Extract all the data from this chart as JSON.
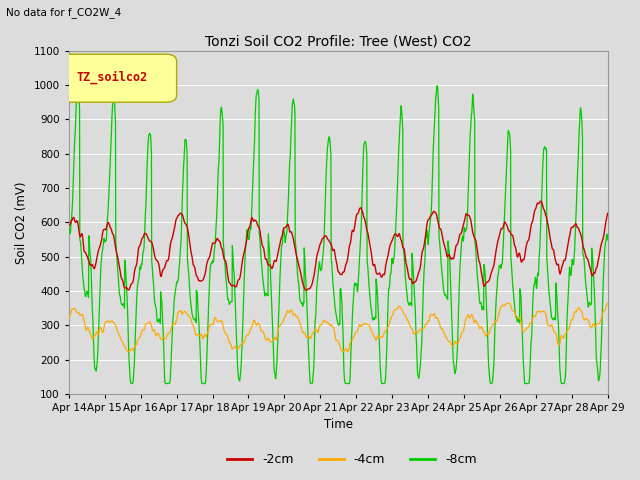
{
  "title": "Tonzi Soil CO2 Profile: Tree (West) CO2",
  "subtitle": "No data for f_CO2W_4",
  "ylabel": "Soil CO2 (mV)",
  "xlabel": "Time",
  "legend_label": "TZ_soilco2",
  "series_labels": [
    "-2cm",
    "-4cm",
    "-8cm"
  ],
  "series_colors": [
    "#cc0000",
    "#ffaa00",
    "#00cc00"
  ],
  "ylim": [
    100,
    1100
  ],
  "yticks": [
    100,
    200,
    300,
    400,
    500,
    600,
    700,
    800,
    900,
    1000,
    1100
  ],
  "xtick_labels": [
    "Apr 14",
    "Apr 15",
    "Apr 16",
    "Apr 17",
    "Apr 18",
    "Apr 19",
    "Apr 20",
    "Apr 21",
    "Apr 22",
    "Apr 23",
    "Apr 24",
    "Apr 25",
    "Apr 26",
    "Apr 27",
    "Apr 28",
    "Apr 29"
  ],
  "bg_color": "#dcdcdc",
  "plot_bg_color": "#dcdcdc",
  "legend_box_color": "#ffff99",
  "legend_box_edge": "#aaaa00",
  "figsize": [
    6.4,
    4.8
  ],
  "dpi": 100
}
